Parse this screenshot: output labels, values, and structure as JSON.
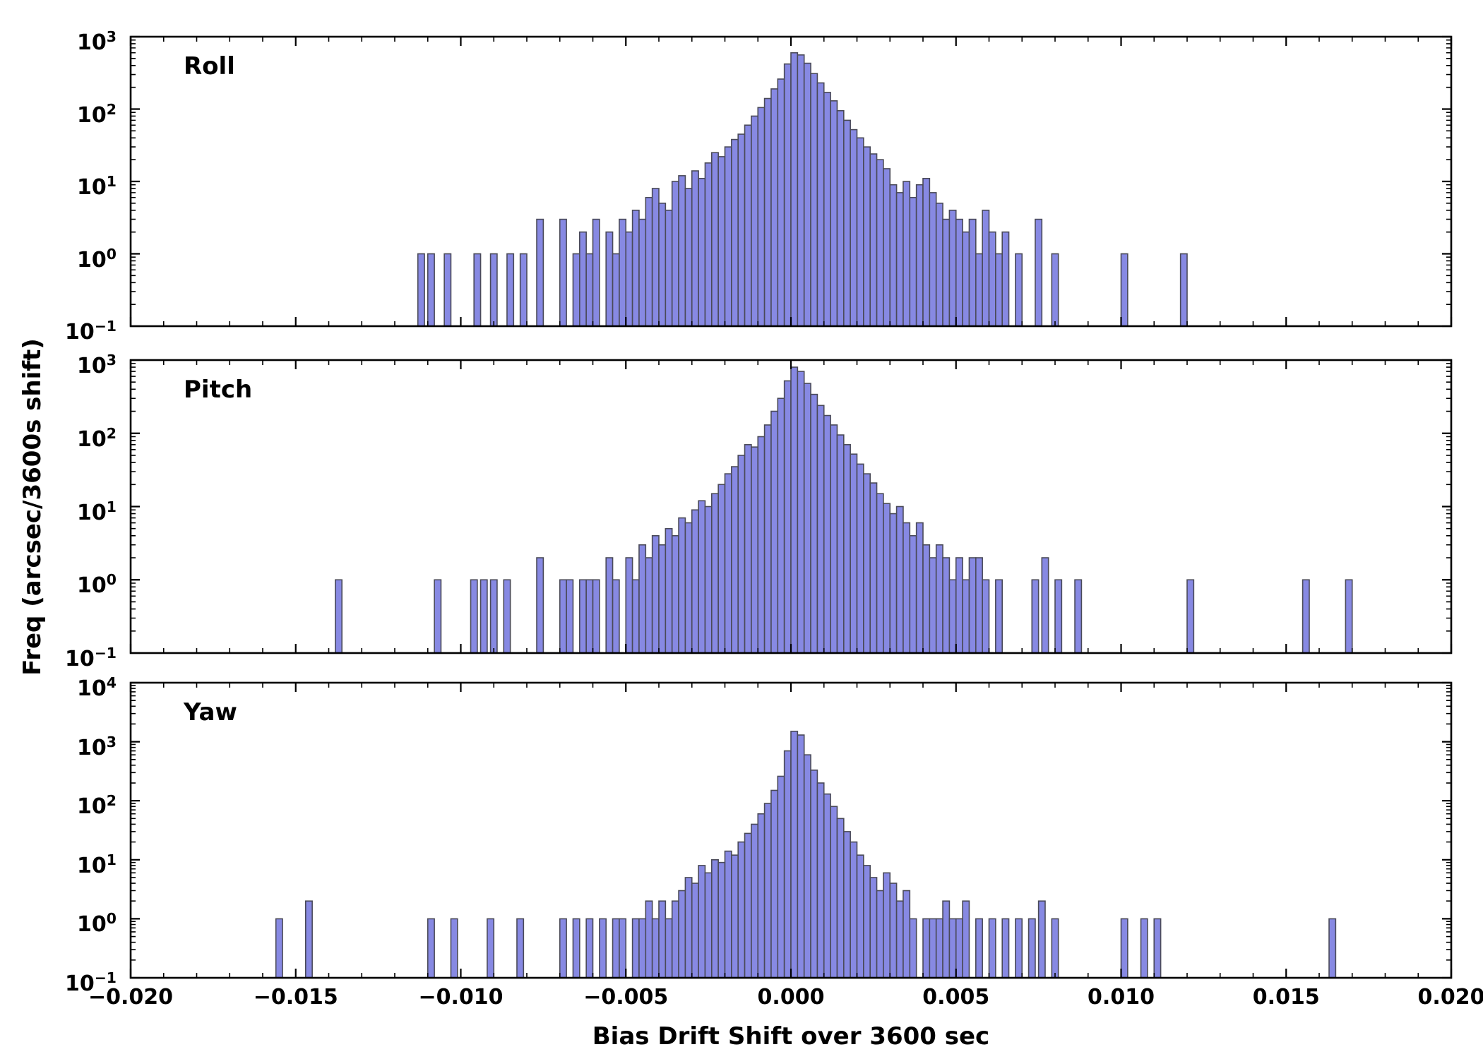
{
  "chart_data": {
    "type": "bar",
    "subtype": "histogram-log-y",
    "title": "",
    "xlabel": "Bias Drift Shift over 3600 sec",
    "ylabel": "Freq (arcsec/3600s shift)",
    "xlim": [
      -0.02,
      0.02
    ],
    "xtick_values": [
      -0.02,
      -0.015,
      -0.01,
      -0.005,
      0.0,
      0.005,
      0.01,
      0.015,
      0.02
    ],
    "xtick_labels": [
      "−0.020",
      "−0.015",
      "−0.010",
      "−0.005",
      "0.000",
      "0.005",
      "0.010",
      "0.015",
      "0.020"
    ],
    "x_minor_step": 0.001,
    "bin_width": 0.0002,
    "legend": null,
    "grid": false,
    "colors": {
      "bar_fill": "#8789e3",
      "bar_edge": "#4a4a58",
      "axis": "#000000",
      "background": "#ffffff"
    },
    "panels": [
      {
        "label": "Roll",
        "ylog_min": -1,
        "ylog_max": 3,
        "center_start": -0.007,
        "counts": [
          3,
          0,
          1,
          2,
          1,
          3,
          0,
          2,
          1,
          3,
          2,
          4,
          3,
          6,
          8,
          5,
          4,
          10,
          12,
          8,
          14,
          11,
          18,
          25,
          22,
          30,
          38,
          45,
          60,
          80,
          105,
          140,
          190,
          260,
          420,
          600,
          560,
          430,
          310,
          230,
          170,
          130,
          95,
          70,
          52,
          40,
          30,
          24,
          20,
          15,
          9,
          7,
          10,
          6,
          9,
          11,
          7,
          5,
          3,
          4,
          3,
          2,
          3,
          1,
          4,
          2,
          1,
          2,
          0,
          1,
          0
        ],
        "outliers": [
          [
            -0.0113,
            1
          ],
          [
            -0.011,
            1
          ],
          [
            -0.0105,
            1
          ],
          [
            -0.0096,
            1
          ],
          [
            -0.0091,
            1
          ],
          [
            -0.0086,
            1
          ],
          [
            -0.0082,
            1
          ],
          [
            -0.0077,
            3
          ],
          [
            0.0074,
            3
          ],
          [
            0.0079,
            1
          ],
          [
            0.01,
            1
          ],
          [
            0.0118,
            1
          ]
        ]
      },
      {
        "label": "Pitch",
        "ylog_min": -1,
        "ylog_max": 3,
        "center_start": -0.007,
        "counts": [
          1,
          1,
          0,
          1,
          1,
          1,
          0,
          2,
          1,
          0,
          2,
          1,
          3,
          2,
          4,
          3,
          5,
          4,
          7,
          6,
          9,
          12,
          10,
          15,
          20,
          28,
          35,
          50,
          70,
          65,
          90,
          130,
          200,
          300,
          520,
          800,
          700,
          480,
          340,
          240,
          175,
          130,
          95,
          70,
          52,
          38,
          28,
          21,
          15,
          11,
          8,
          10,
          6,
          4,
          6,
          3,
          2,
          3,
          2,
          1,
          2,
          1,
          2,
          2,
          1,
          0,
          1,
          0,
          0,
          0,
          0
        ],
        "outliers": [
          [
            -0.0138,
            1
          ],
          [
            -0.0108,
            1
          ],
          [
            -0.0097,
            1
          ],
          [
            -0.0094,
            1
          ],
          [
            -0.0091,
            1
          ],
          [
            -0.0087,
            1
          ],
          [
            -0.0077,
            2
          ],
          [
            0.0073,
            1
          ],
          [
            0.0076,
            2
          ],
          [
            0.008,
            1
          ],
          [
            0.0086,
            1
          ],
          [
            0.012,
            1
          ],
          [
            0.0155,
            1
          ],
          [
            0.0168,
            1
          ]
        ]
      },
      {
        "label": "Yaw",
        "ylog_min": -1,
        "ylog_max": 4,
        "center_start": -0.007,
        "counts": [
          1,
          0,
          1,
          0,
          1,
          0,
          1,
          0,
          1,
          1,
          0,
          1,
          1,
          2,
          1,
          2,
          1,
          2,
          3,
          5,
          4,
          8,
          6,
          10,
          9,
          14,
          12,
          20,
          28,
          40,
          60,
          90,
          150,
          260,
          700,
          1500,
          1300,
          600,
          330,
          200,
          130,
          80,
          50,
          30,
          20,
          12,
          8,
          5,
          3,
          6,
          4,
          2,
          3,
          1,
          0,
          1,
          1,
          1,
          2,
          1,
          1,
          2,
          0,
          1,
          0,
          1,
          0,
          1,
          0,
          1,
          0
        ],
        "outliers": [
          [
            -0.0156,
            1
          ],
          [
            -0.0147,
            2
          ],
          [
            -0.011,
            1
          ],
          [
            -0.0103,
            1
          ],
          [
            -0.0092,
            1
          ],
          [
            -0.0083,
            1
          ],
          [
            0.0072,
            1
          ],
          [
            0.0075,
            2
          ],
          [
            0.0079,
            1
          ],
          [
            0.01,
            1
          ],
          [
            0.0106,
            1
          ],
          [
            0.011,
            1
          ],
          [
            0.0163,
            1
          ]
        ]
      }
    ]
  }
}
